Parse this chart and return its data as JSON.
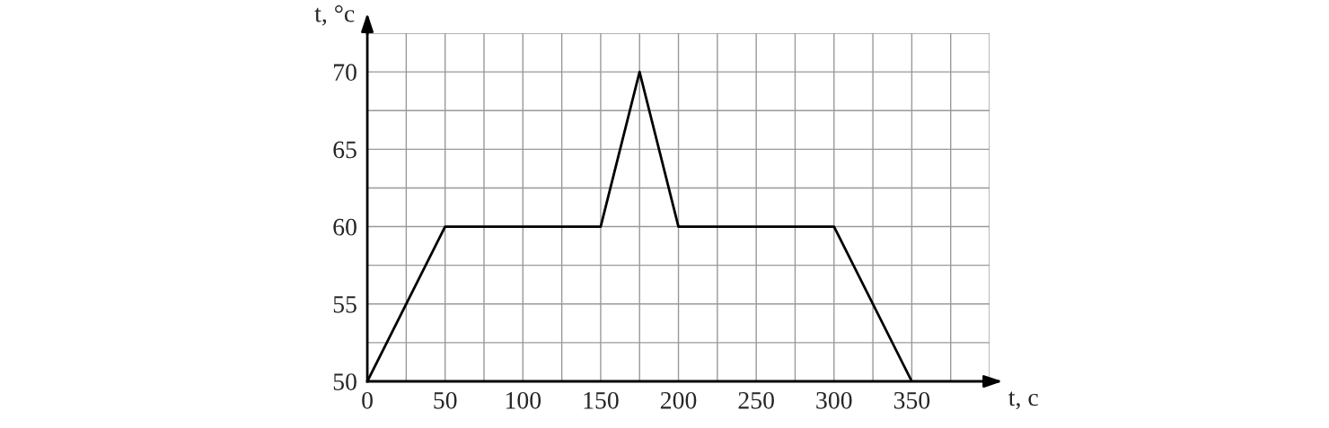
{
  "chart_data": {
    "type": "line",
    "xlabel": "t, с",
    "ylabel": "t, °с",
    "x": [
      0,
      50,
      150,
      175,
      200,
      300,
      350
    ],
    "series": [
      {
        "color": "#000000",
        "values": [
          50,
          60,
          60,
          70,
          60,
          60,
          50
        ]
      }
    ],
    "xlim": [
      0,
      400
    ],
    "ylim": [
      50,
      72.5
    ],
    "xticks": [
      0,
      {
        "value": 25,
        "label": null
      },
      50,
      {
        "value": 75,
        "label": null
      },
      100,
      {
        "value": 125,
        "label": null
      },
      150,
      {
        "value": 175,
        "label": null
      },
      200,
      {
        "value": 225,
        "label": null
      },
      250,
      {
        "value": 275,
        "label": null
      },
      300,
      {
        "value": 325,
        "label": null
      },
      350,
      {
        "value": 375,
        "label": null
      },
      {
        "value": 400,
        "label": null
      }
    ],
    "yticks": [
      50,
      {
        "value": 52.5,
        "label": null
      },
      55,
      {
        "value": 57.5,
        "label": null
      },
      60,
      {
        "value": 62.5,
        "label": null
      },
      65,
      {
        "value": 67.5,
        "label": null
      },
      70,
      {
        "value": 72.5,
        "label": null
      }
    ],
    "grid": true,
    "marker": "none",
    "line_style": "solid"
  }
}
